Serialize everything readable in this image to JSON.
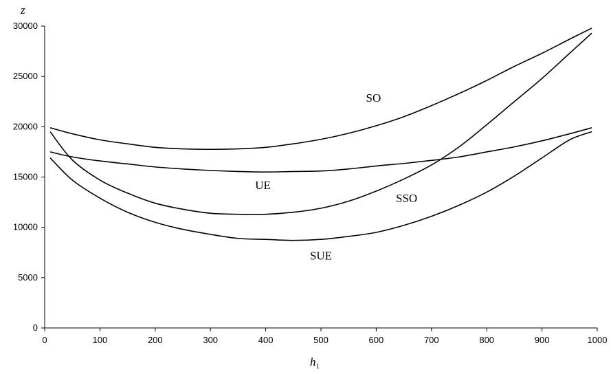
{
  "chart_data": {
    "type": "line",
    "title": "",
    "xlabel": "h",
    "xlabel_subscript": "1",
    "ylabel": "z",
    "xlim": [
      0,
      1000
    ],
    "ylim": [
      0,
      30000
    ],
    "x_ticks": [
      "0",
      "100",
      "200",
      "300",
      "400",
      "500",
      "600",
      "700",
      "800",
      "900",
      "1000"
    ],
    "y_ticks": [
      "0",
      "5000",
      "10000",
      "15000",
      "20000",
      "25000",
      "30000"
    ],
    "grid": false,
    "legend": "none",
    "x": [
      10,
      50,
      100,
      150,
      200,
      250,
      300,
      350,
      400,
      450,
      500,
      550,
      600,
      650,
      700,
      750,
      800,
      850,
      900,
      950,
      990
    ],
    "series": [
      {
        "name": "SO",
        "values": [
          19900,
          19300,
          18700,
          18300,
          17950,
          17800,
          17750,
          17800,
          17950,
          18300,
          18750,
          19350,
          20100,
          21000,
          22100,
          23300,
          24600,
          26000,
          27300,
          28700,
          29800
        ]
      },
      {
        "name": "UE",
        "values": [
          17500,
          17000,
          16600,
          16300,
          16000,
          15800,
          15650,
          15550,
          15500,
          15550,
          15600,
          15800,
          16100,
          16350,
          16650,
          17000,
          17500,
          18000,
          18600,
          19300,
          19900
        ]
      },
      {
        "name": "SSO",
        "values": [
          19500,
          16700,
          14700,
          13400,
          12400,
          11800,
          11400,
          11300,
          11300,
          11500,
          11900,
          12600,
          13600,
          14800,
          16200,
          18000,
          20200,
          22500,
          24800,
          27300,
          29300
        ]
      },
      {
        "name": "SUE",
        "values": [
          16900,
          14700,
          12900,
          11500,
          10500,
          9800,
          9300,
          8900,
          8800,
          8700,
          8800,
          9100,
          9500,
          10200,
          11100,
          12200,
          13500,
          15100,
          16900,
          18700,
          19500
        ]
      }
    ],
    "annotations": [
      {
        "text": "SO",
        "x": 595,
        "y": 22500
      },
      {
        "text": "UE",
        "x": 395,
        "y": 13800
      },
      {
        "text": "SSO",
        "x": 655,
        "y": 12500
      },
      {
        "text": "SUE",
        "x": 500,
        "y": 6800
      }
    ]
  }
}
